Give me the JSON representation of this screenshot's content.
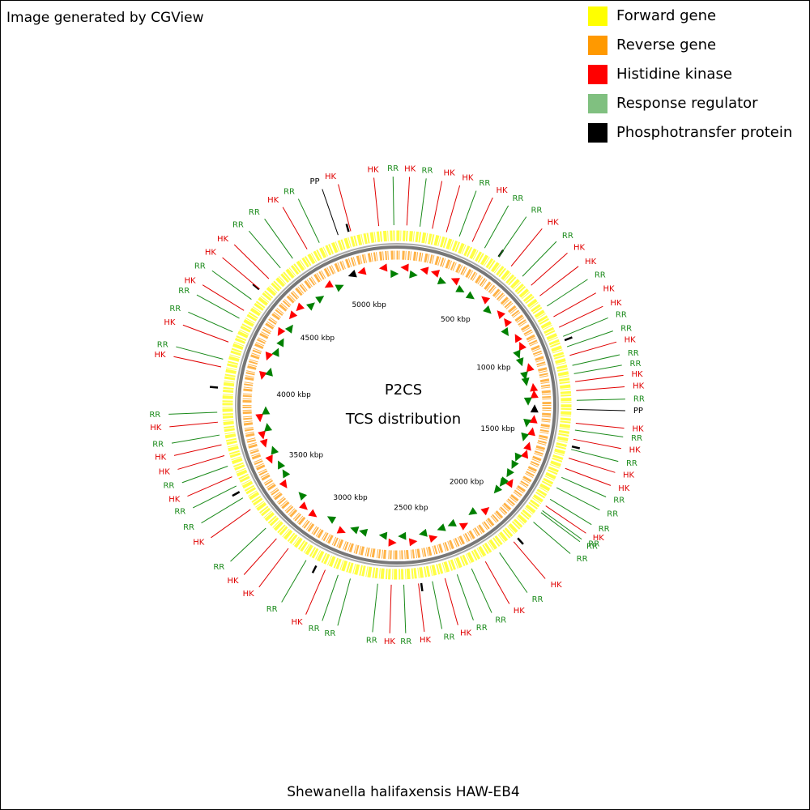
{
  "header": {
    "text": "Image generated by CGView"
  },
  "chart_data": {
    "type": "circular-genome",
    "title": "P2CS",
    "subtitle": "TCS distribution",
    "caption": "Shewanella halifaxensis HAW-EB4",
    "xlim": [
      0,
      5226
    ],
    "ticks": [
      {
        "value": 500,
        "label": "500 kbp"
      },
      {
        "value": 1000,
        "label": "1000 kbp"
      },
      {
        "value": 1500,
        "label": "1500 kbp"
      },
      {
        "value": 2000,
        "label": "2000 kbp"
      },
      {
        "value": 2500,
        "label": "2500 kbp"
      },
      {
        "value": 3000,
        "label": "3000 kbp"
      },
      {
        "value": 3500,
        "label": "3500 kbp"
      },
      {
        "value": 4000,
        "label": "4000 kbp"
      },
      {
        "value": 4500,
        "label": "4500 kbp"
      },
      {
        "value": 5000,
        "label": "5000 kbp"
      }
    ],
    "tracks": [
      {
        "name": "Forward gene",
        "color": "#ffff00"
      },
      {
        "name": "Reverse gene",
        "color": "#ff9900"
      }
    ],
    "series": [
      {
        "name": "Histidine kinase",
        "color": "#ff0000",
        "text_color": "#e00000",
        "tag": "HK",
        "positions": [
          46,
          165,
          232,
          360,
          573,
          701,
          764,
          880,
          935,
          1074,
          1198,
          1240,
          1391,
          1466,
          1556,
          1606,
          1802,
          2025,
          2185,
          2388,
          2513,
          2639,
          2954,
          3152,
          3223,
          3404,
          3578,
          3682,
          3734,
          3840,
          4097,
          4217,
          4380,
          4503,
          4567,
          4791,
          5010,
          5142
        ]
      },
      {
        "name": "Response regulator",
        "color": "#80c080",
        "text_color": "#1a8a1a",
        "tag": "RR",
        "positions": [
          5212,
          107,
          295,
          424,
          501,
          643,
          822,
          981,
          1032,
          1122,
          1161,
          1285,
          1423,
          1514,
          1651,
          1704,
          1765,
          1829,
          1840,
          1896,
          2108,
          2257,
          2329,
          2448,
          2581,
          2702,
          2831,
          2890,
          3053,
          3292,
          3468,
          3531,
          3631,
          3780,
          3886,
          4134,
          4268,
          4338,
          4442,
          4640,
          4712,
          4855
        ]
      },
      {
        "name": "Phosphotransfer protein",
        "color": "#000000",
        "text_color": "#000000",
        "tag": "PP",
        "positions": [
          1327,
          4949
        ]
      }
    ]
  }
}
